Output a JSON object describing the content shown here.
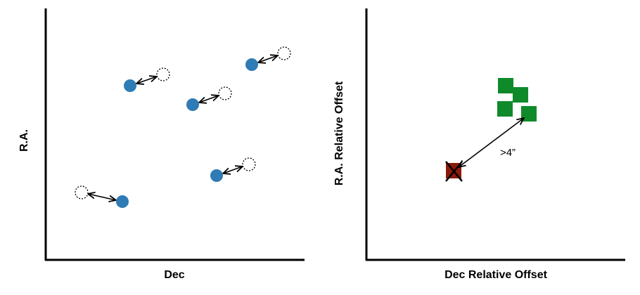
{
  "panels": [
    {
      "y_label": "R.A.",
      "x_label": "Dec"
    },
    {
      "y_label": "R.A. Relative Offset",
      "x_label": "Dec Relative Offset",
      "annotation": ">4”"
    }
  ]
}
